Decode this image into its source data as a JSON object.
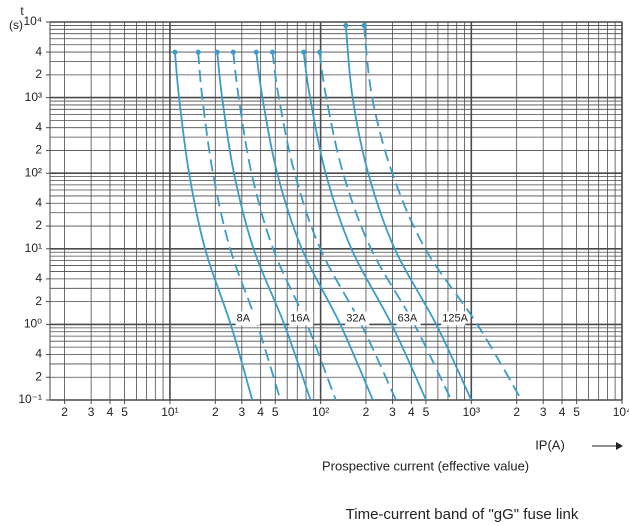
{
  "chart_data": {
    "type": "fuse-curves",
    "y_label_top": "t",
    "y_label_unit": "(s)",
    "x_label": "IP(A)",
    "x_subtitle": "Prospective current (effective value)",
    "caption": "Time-current band of \"gG\" fuse link",
    "log_x": true,
    "log_y": true,
    "grid": true,
    "color": "#3a9cc8",
    "grid_color": "#4a4a4a",
    "xlim": [
      1.6,
      10000
    ],
    "ylim": [
      0.1,
      10000
    ],
    "xticks": [
      2,
      3,
      4,
      5,
      {
        "value": 10,
        "label": "10¹"
      },
      {
        "value": 20,
        "label": "2"
      },
      {
        "value": 30,
        "label": "3"
      },
      {
        "value": 40,
        "label": "4"
      },
      {
        "value": 50,
        "label": "5"
      },
      {
        "value": 100,
        "label": "10²"
      },
      {
        "value": 200,
        "label": "2"
      },
      {
        "value": 300,
        "label": "3"
      },
      {
        "value": 400,
        "label": "4"
      },
      {
        "value": 500,
        "label": "5"
      },
      {
        "value": 1000,
        "label": "10³"
      },
      {
        "value": 2000,
        "label": "2"
      },
      {
        "value": 3000,
        "label": "3"
      },
      {
        "value": 4000,
        "label": "4"
      },
      {
        "value": 5000,
        "label": "5"
      },
      {
        "value": 10000,
        "label": "10⁴"
      }
    ],
    "yticks": [
      {
        "value": 10000,
        "label": "10⁴"
      },
      {
        "value": 4000,
        "label": "4"
      },
      {
        "value": 2000,
        "label": "2"
      },
      {
        "value": 1000,
        "label": "10³"
      },
      {
        "value": 400,
        "label": "4"
      },
      {
        "value": 200,
        "label": "2"
      },
      {
        "value": 100,
        "label": "10²"
      },
      {
        "value": 40,
        "label": "4"
      },
      {
        "value": 20,
        "label": "2"
      },
      {
        "value": 10,
        "label": "10¹"
      },
      4,
      2,
      {
        "value": 1,
        "label": "10⁰"
      },
      {
        "value": 0.4,
        "label": "4"
      },
      {
        "value": 0.2,
        "label": "2"
      },
      {
        "value": 0.1,
        "label": "10⁻¹"
      }
    ],
    "xgrid": [
      2,
      3,
      4,
      5,
      6,
      7,
      8,
      9,
      10,
      20,
      30,
      40,
      50,
      60,
      70,
      80,
      90,
      100,
      200,
      300,
      400,
      500,
      600,
      700,
      800,
      900,
      1000,
      2000,
      3000,
      4000,
      5000,
      6000,
      7000,
      8000,
      9000,
      10000
    ],
    "ygrid": [
      0.1,
      0.2,
      0.3,
      0.4,
      0.5,
      0.6,
      0.7,
      0.8,
      0.9,
      1,
      2,
      3,
      4,
      5,
      6,
      7,
      8,
      9,
      10,
      20,
      30,
      40,
      50,
      60,
      70,
      80,
      90,
      100,
      200,
      300,
      400,
      500,
      600,
      700,
      800,
      900,
      1000,
      2000,
      3000,
      4000,
      5000,
      6000,
      7000,
      8000,
      9000,
      10000
    ],
    "series": [
      {
        "name": "8A",
        "x_min": [
          10.8,
          11.5,
          13.4,
          17.1,
          25.3,
          35.2
        ],
        "y_min": [
          4000,
          1000,
          100,
          10,
          1,
          0.1
        ],
        "x_max": [
          15.4,
          16.4,
          19.3,
          25.1,
          38.0,
          54.1
        ],
        "y_max": [
          4000,
          1000,
          100,
          10,
          1,
          0.1
        ]
      },
      {
        "name": "16A",
        "x_min": [
          20.6,
          22.2,
          26.6,
          35.9,
          57.4,
          85.7
        ],
        "y_min": [
          4000,
          1000,
          100,
          10,
          1,
          0.1
        ],
        "x_max": [
          26.3,
          28.6,
          34.8,
          48.4,
          81.3,
          126
        ],
        "y_max": [
          4000,
          1000,
          100,
          10,
          1,
          0.1
        ]
      },
      {
        "name": "32A",
        "x_min": [
          37.4,
          41.1,
          51.5,
          75.0,
          135,
          222
        ],
        "y_min": [
          4000,
          1000,
          100,
          10,
          1,
          0.1
        ],
        "x_max": [
          47.9,
          52.8,
          67.3,
          99.5,
          186,
          316
        ],
        "y_max": [
          4000,
          1000,
          100,
          10,
          1,
          0.1
        ]
      },
      {
        "name": "63A",
        "x_min": [
          77.1,
          85.1,
          108,
          160,
          296,
          501
        ],
        "y_min": [
          4000,
          1000,
          100,
          10,
          1,
          0.1
        ],
        "x_max": [
          98.4,
          109,
          141,
          216,
          419,
          736
        ],
        "y_max": [
          4000,
          1000,
          100,
          10,
          1,
          0.1
        ]
      },
      {
        "name": "125A",
        "x_min": [
          147,
          163,
          207,
          310,
          585,
          1000
        ],
        "y_min": [
          9000,
          1000,
          100,
          10,
          1,
          0.1
        ],
        "x_max": [
          194,
          220,
          299,
          495,
          1096,
          2153
        ],
        "y_max": [
          9000,
          1000,
          100,
          10,
          1,
          0.1
        ]
      }
    ]
  }
}
